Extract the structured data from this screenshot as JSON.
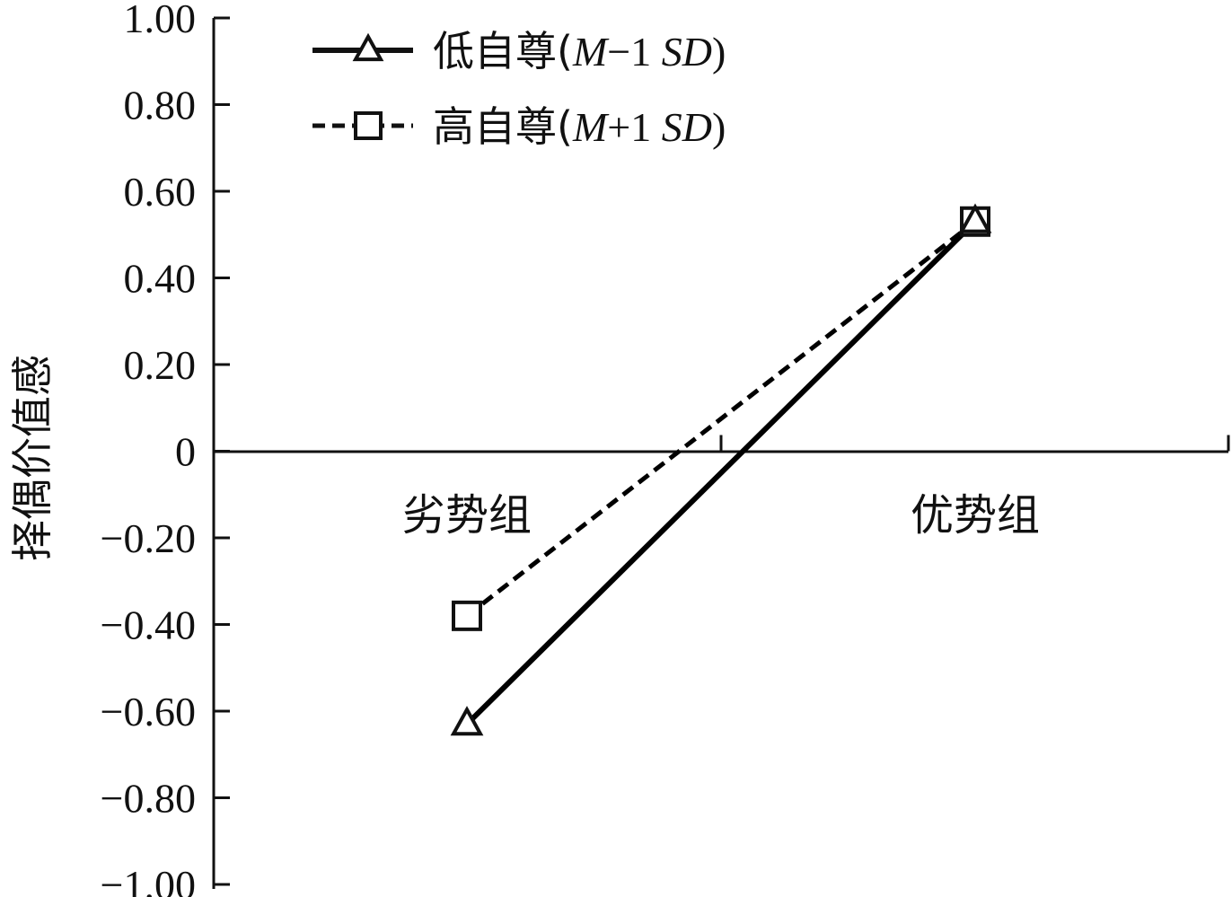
{
  "chart_data": {
    "type": "line",
    "title": "",
    "xlabel": "",
    "ylabel": "择偶价值感",
    "categories": [
      "劣势组",
      "优势组"
    ],
    "ylim": [
      -1.0,
      1.0
    ],
    "yticks": [
      "1.00",
      "0.80",
      "0.60",
      "0.40",
      "0.20",
      "0",
      "−0.20",
      "−0.40",
      "−0.60",
      "−0.80",
      "−1.00"
    ],
    "ytick_values": [
      1.0,
      0.8,
      0.6,
      0.4,
      0.2,
      0,
      -0.2,
      -0.4,
      -0.6,
      -0.8,
      -1.0
    ],
    "grid": false,
    "legend_position": "top-left",
    "series": [
      {
        "name": "低自尊(M−1 SD)",
        "name_parts": {
          "cn": "低自尊(",
          "m": "M",
          "rest": "−1 ",
          "sd": "SD",
          "close": ")"
        },
        "values": [
          -0.63,
          0.53
        ],
        "line_style": "solid",
        "marker": "triangle",
        "color": "#000000"
      },
      {
        "name": "高自尊(M+1 SD)",
        "name_parts": {
          "cn": "高自尊(",
          "m": "M",
          "rest": "+1 ",
          "sd": "SD",
          "close": ")"
        },
        "values": [
          -0.38,
          0.53
        ],
        "line_style": "dashed",
        "marker": "square",
        "color": "#000000"
      }
    ]
  }
}
